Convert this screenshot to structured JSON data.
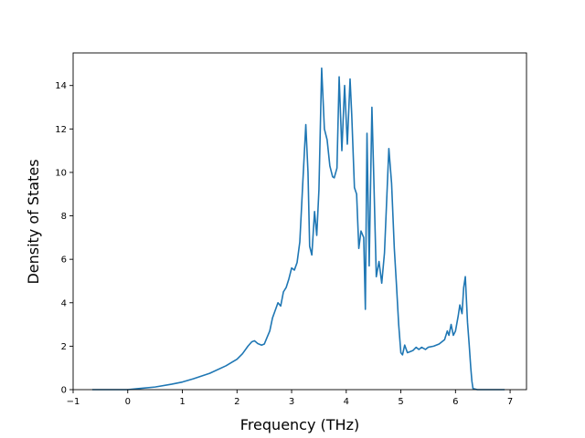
{
  "chart_data": {
    "type": "line",
    "title": "",
    "xlabel": "Frequency (THz)",
    "ylabel": "Density of States",
    "xlim": [
      -1.0,
      7.3
    ],
    "ylim": [
      0,
      15.5
    ],
    "xticks": [
      -1,
      0,
      1,
      2,
      3,
      4,
      5,
      6,
      7
    ],
    "yticks": [
      0,
      2,
      4,
      6,
      8,
      10,
      12,
      14
    ],
    "xtick_labels": [
      "−1",
      "0",
      "1",
      "2",
      "3",
      "4",
      "5",
      "6",
      "7"
    ],
    "ytick_labels": [
      "0",
      "2",
      "4",
      "6",
      "8",
      "10",
      "12",
      "14"
    ],
    "grid": false,
    "line_color": "#1f77b4",
    "series": [
      {
        "x": [
          -0.65,
          0.0,
          0.2,
          0.5,
          0.8,
          1.0,
          1.2,
          1.5,
          1.8,
          2.0,
          2.1,
          2.2,
          2.27,
          2.32,
          2.38,
          2.45,
          2.5,
          2.55,
          2.6,
          2.65,
          2.7,
          2.75,
          2.8,
          2.85,
          2.9,
          2.95,
          3.0,
          3.05,
          3.1,
          3.15,
          3.2,
          3.26,
          3.3,
          3.33,
          3.37,
          3.42,
          3.46,
          3.5,
          3.55,
          3.6,
          3.65,
          3.7,
          3.75,
          3.78,
          3.83,
          3.87,
          3.92,
          3.97,
          4.02,
          4.07,
          4.1,
          4.15,
          4.19,
          4.23,
          4.27,
          4.32,
          4.35,
          4.38,
          4.42,
          4.47,
          4.5,
          4.55,
          4.6,
          4.65,
          4.7,
          4.78,
          4.83,
          4.88,
          4.92,
          4.96,
          5.0,
          5.03,
          5.07,
          5.12,
          5.17,
          5.22,
          5.28,
          5.33,
          5.38,
          5.45,
          5.5,
          5.6,
          5.7,
          5.75,
          5.8,
          5.85,
          5.88,
          5.92,
          5.96,
          6.0,
          6.05,
          6.08,
          6.12,
          6.15,
          6.18,
          6.22,
          6.25,
          6.28,
          6.3,
          6.32,
          6.4,
          6.9
        ],
        "y": [
          0.0,
          0.0,
          0.05,
          0.12,
          0.25,
          0.35,
          0.5,
          0.75,
          1.1,
          1.4,
          1.65,
          2.0,
          2.2,
          2.25,
          2.12,
          2.05,
          2.1,
          2.4,
          2.7,
          3.3,
          3.65,
          4.0,
          3.85,
          4.5,
          4.7,
          5.1,
          5.6,
          5.5,
          5.85,
          6.8,
          9.3,
          12.2,
          10.0,
          6.6,
          6.2,
          8.2,
          7.1,
          9.2,
          14.8,
          12.0,
          11.5,
          10.3,
          9.8,
          9.75,
          10.2,
          14.4,
          11.0,
          14.0,
          11.3,
          14.3,
          12.7,
          9.3,
          9.0,
          6.5,
          7.3,
          7.0,
          3.7,
          11.8,
          5.7,
          13.0,
          10.2,
          5.2,
          5.9,
          4.9,
          6.3,
          11.1,
          9.5,
          6.5,
          4.8,
          3.0,
          1.7,
          1.6,
          2.05,
          1.7,
          1.75,
          1.8,
          1.95,
          1.85,
          1.95,
          1.85,
          1.95,
          2.0,
          2.1,
          2.2,
          2.3,
          2.7,
          2.5,
          3.0,
          2.5,
          2.7,
          3.4,
          3.9,
          3.5,
          4.7,
          5.2,
          3.1,
          2.1,
          1.0,
          0.4,
          0.05,
          0.0,
          0.0
        ]
      }
    ]
  }
}
